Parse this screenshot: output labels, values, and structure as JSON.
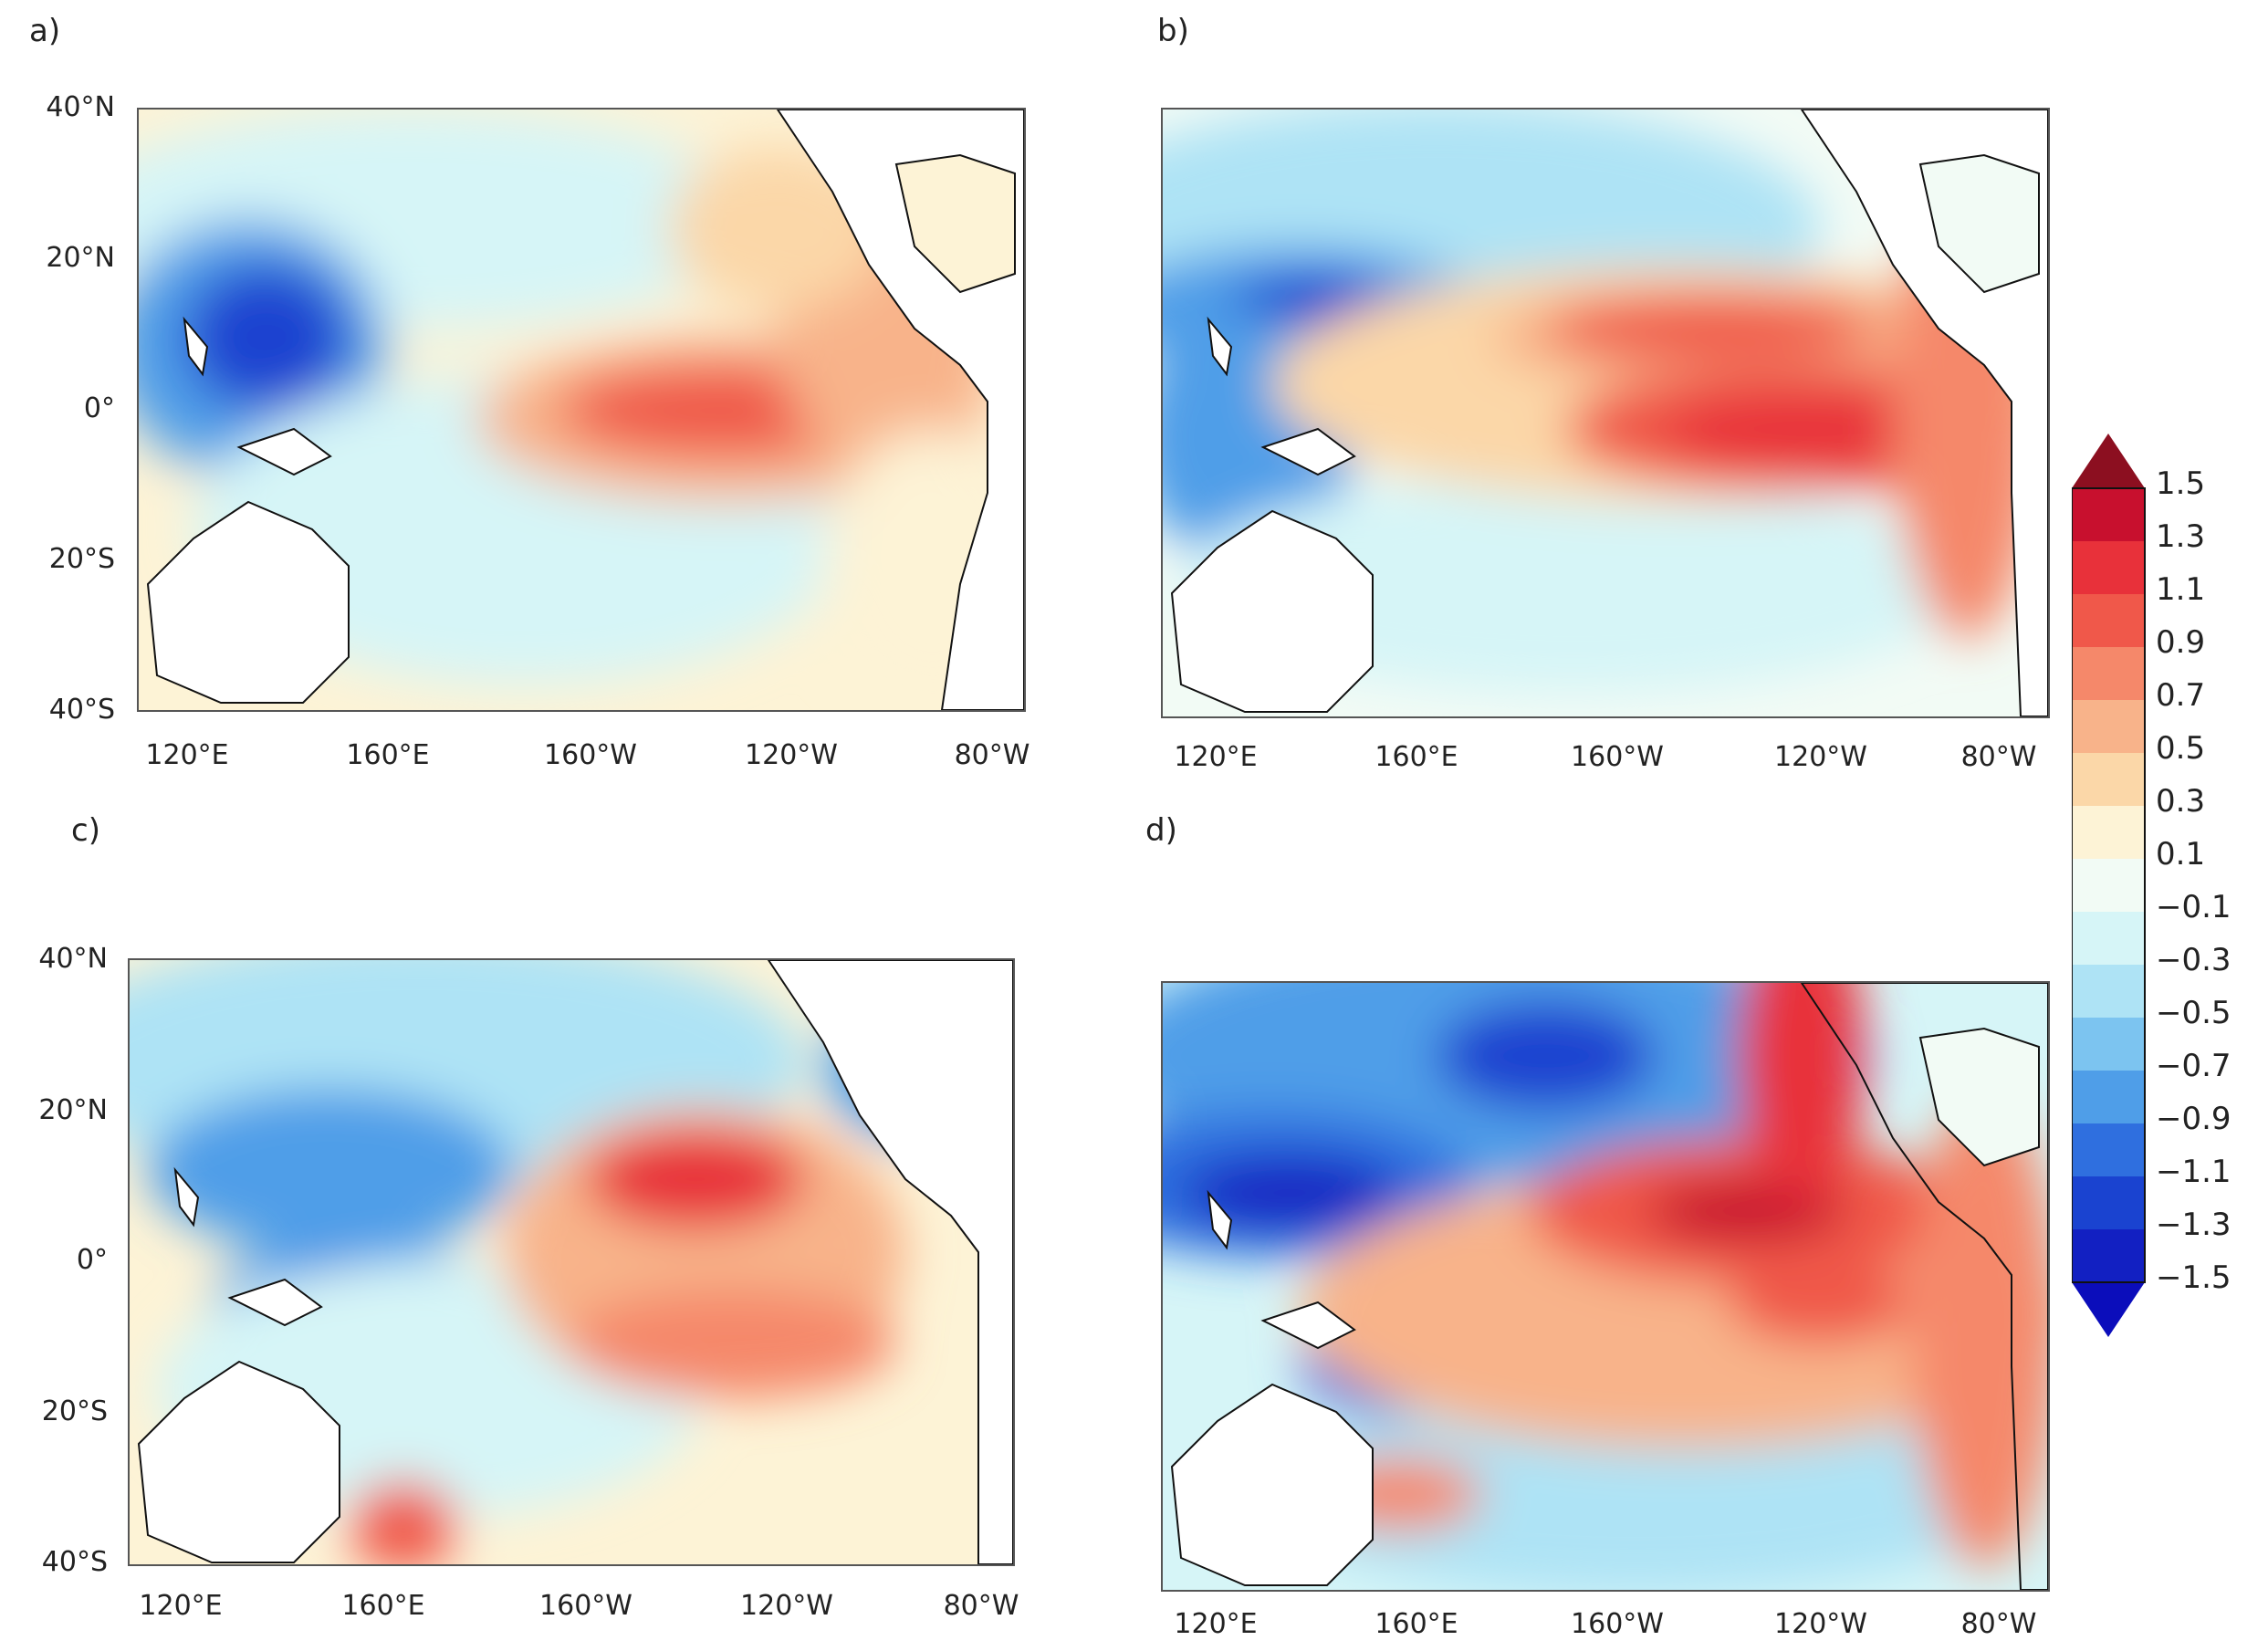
{
  "panels": [
    {
      "id": "a",
      "label": "a)"
    },
    {
      "id": "b",
      "label": "b)"
    },
    {
      "id": "c",
      "label": "c)"
    },
    {
      "id": "d",
      "label": "d)"
    }
  ],
  "lat_labels": [
    "40°N",
    "20°N",
    "0°",
    "20°S",
    "40°S"
  ],
  "lon_labels": [
    "120°E",
    "160°E",
    "160°W",
    "120°W",
    "80°W"
  ],
  "colorbar": {
    "labels": [
      "1.5",
      "1.3",
      "1.1",
      "0.9",
      "0.7",
      "0.5",
      "0.3",
      "0.1",
      "−0.1",
      "−0.3",
      "−0.5",
      "−0.7",
      "−0.9",
      "−1.1",
      "−1.3",
      "−1.5"
    ],
    "colors": [
      "#8c0f20",
      "#c8102e",
      "#e8313a",
      "#f0584a",
      "#f5886a",
      "#f8b38a",
      "#fbd7a8",
      "#fdf3d6",
      "#f2fbf5",
      "#d6f5f7",
      "#aee3f5",
      "#7cc4f0",
      "#4f9ee8",
      "#2f6fdf",
      "#1a43d0",
      "#1220c2",
      "#0b0dbb"
    ]
  },
  "palette": {
    "land": "#ffffff",
    "coast": "#111111",
    "neutral": "#f2fbf5"
  }
}
